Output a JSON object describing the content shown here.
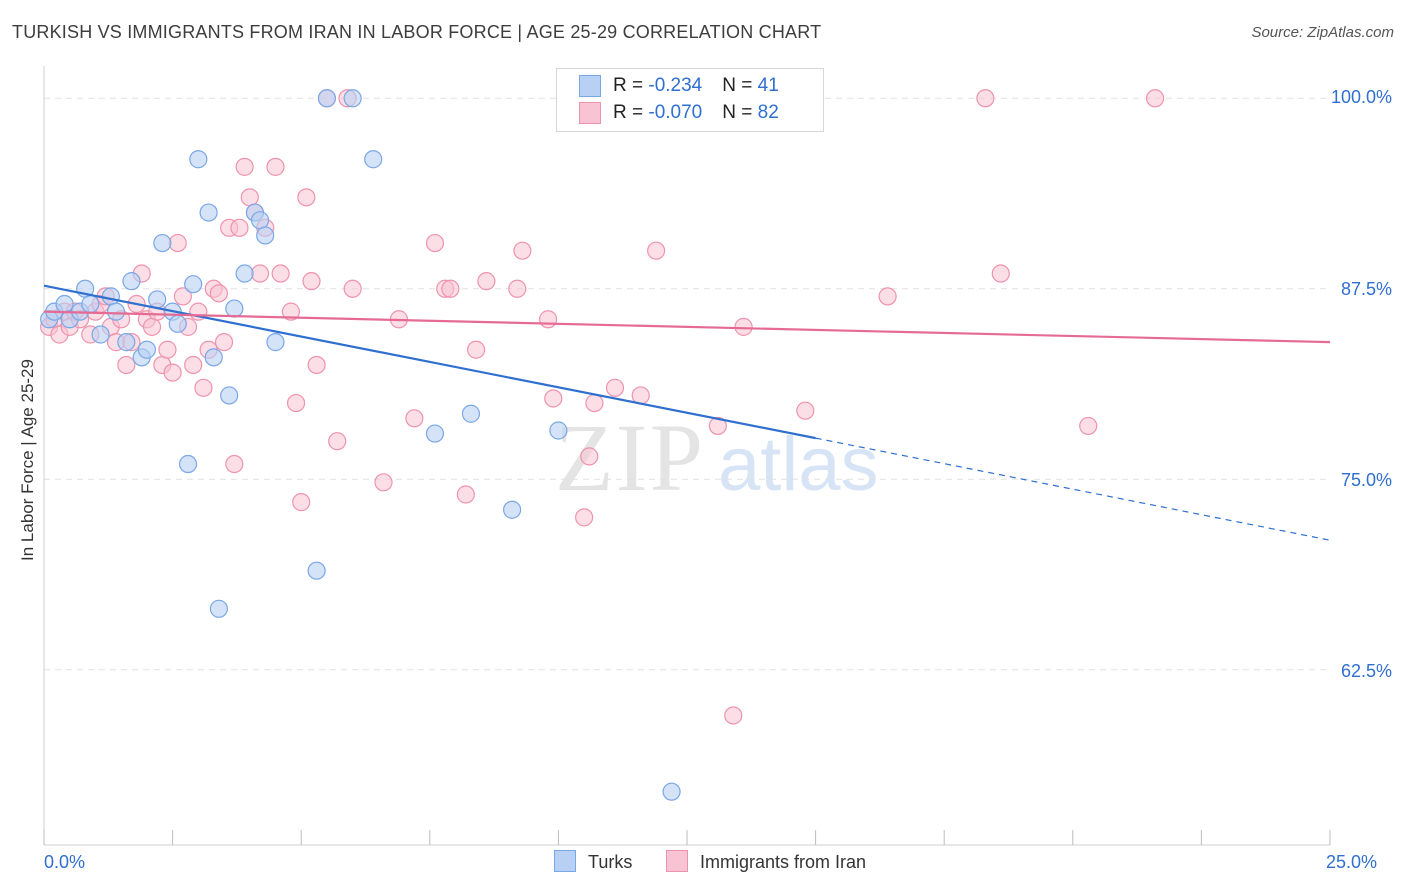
{
  "title": "TURKISH VS IMMIGRANTS FROM IRAN IN LABOR FORCE | AGE 25-29 CORRELATION CHART",
  "source": "Source: ZipAtlas.com",
  "watermark": {
    "zip": "ZIP",
    "atlas": "atlas"
  },
  "legend": {
    "turks": {
      "r_label": "R = ",
      "r_value": "-0.234",
      "n_label": "N = ",
      "n_value": "41"
    },
    "iran": {
      "r_label": "R = ",
      "r_value": "-0.070",
      "n_label": "N = ",
      "n_value": "82"
    }
  },
  "bottom_legend": {
    "turks": "Turks",
    "iran": "Immigrants from Iran"
  },
  "colors": {
    "turks_fill": "#b7d0f3",
    "turks_stroke": "#7aa7e6",
    "turks_line": "#2f6fd0",
    "iran_fill": "#f8c3d2",
    "iran_stroke": "#ee93ae",
    "iran_line": "#e56b95",
    "grid": "#e0e0e0",
    "axis_text": "#2f6fd0"
  },
  "chart_data": {
    "type": "scatter",
    "title": "TURKISH VS IMMIGRANTS FROM IRAN IN LABOR FORCE | AGE 25-29 CORRELATION CHART",
    "xlabel": "",
    "ylabel": "In Labor Force | Age 25-29",
    "xlim": [
      0.0,
      25.0
    ],
    "ylim": [
      51.0,
      101.2
    ],
    "x_tick_labels": [
      "0.0%",
      "25.0%"
    ],
    "y_ticks": [
      62.5,
      75.0,
      87.5,
      100.0
    ],
    "y_tick_labels": [
      "62.5%",
      "75.0%",
      "87.5%",
      "100.0%"
    ],
    "grid": true,
    "legend_position": "top-center",
    "series": [
      {
        "name": "Turks",
        "R": -0.234,
        "N": 41,
        "trend": {
          "x0": 0.0,
          "y0": 87.7,
          "x1": 15.0,
          "y1": 77.7,
          "dashed_to_x": 25.0,
          "dashed_to_y": 71.0
        },
        "points": [
          [
            0.1,
            85.5
          ],
          [
            0.2,
            86.0
          ],
          [
            0.4,
            86.5
          ],
          [
            0.5,
            85.5
          ],
          [
            0.7,
            86.0
          ],
          [
            0.8,
            87.5
          ],
          [
            0.9,
            86.5
          ],
          [
            1.1,
            84.5
          ],
          [
            1.3,
            87.0
          ],
          [
            1.4,
            86.0
          ],
          [
            1.6,
            84.0
          ],
          [
            1.7,
            88.0
          ],
          [
            1.9,
            83.0
          ],
          [
            2.0,
            83.5
          ],
          [
            2.2,
            86.8
          ],
          [
            2.3,
            90.5
          ],
          [
            2.5,
            86.0
          ],
          [
            2.6,
            85.2
          ],
          [
            2.8,
            76.0
          ],
          [
            2.9,
            87.8
          ],
          [
            3.0,
            96.0
          ],
          [
            3.2,
            92.5
          ],
          [
            3.3,
            83.0
          ],
          [
            3.4,
            66.5
          ],
          [
            3.6,
            80.5
          ],
          [
            3.7,
            86.2
          ],
          [
            3.9,
            88.5
          ],
          [
            4.1,
            92.5
          ],
          [
            4.2,
            92.0
          ],
          [
            4.3,
            91.0
          ],
          [
            4.5,
            84.0
          ],
          [
            5.3,
            69.0
          ],
          [
            5.5,
            100.0
          ],
          [
            6.0,
            100.0
          ],
          [
            6.4,
            96.0
          ],
          [
            7.6,
            78.0
          ],
          [
            8.3,
            79.3
          ],
          [
            9.1,
            73.0
          ],
          [
            10.0,
            78.2
          ],
          [
            12.1,
            100.0
          ],
          [
            12.2,
            54.5
          ]
        ]
      },
      {
        "name": "Immigrants from Iran",
        "R": -0.07,
        "N": 82,
        "trend": {
          "x0": 0.0,
          "y0": 86.0,
          "x1": 25.0,
          "y1": 84.0
        },
        "points": [
          [
            0.1,
            85.0
          ],
          [
            0.2,
            85.5
          ],
          [
            0.3,
            84.5
          ],
          [
            0.4,
            86.0
          ],
          [
            0.5,
            85.0
          ],
          [
            0.6,
            86.0
          ],
          [
            0.7,
            85.5
          ],
          [
            0.9,
            84.5
          ],
          [
            1.0,
            86.0
          ],
          [
            1.1,
            86.5
          ],
          [
            1.2,
            87.0
          ],
          [
            1.3,
            85.0
          ],
          [
            1.4,
            84.0
          ],
          [
            1.5,
            85.5
          ],
          [
            1.6,
            82.5
          ],
          [
            1.7,
            84.0
          ],
          [
            1.8,
            86.5
          ],
          [
            1.9,
            88.5
          ],
          [
            2.0,
            85.5
          ],
          [
            2.1,
            85.0
          ],
          [
            2.2,
            86.0
          ],
          [
            2.3,
            82.5
          ],
          [
            2.4,
            83.5
          ],
          [
            2.5,
            82.0
          ],
          [
            2.6,
            90.5
          ],
          [
            2.7,
            87.0
          ],
          [
            2.8,
            85.0
          ],
          [
            2.9,
            82.5
          ],
          [
            3.0,
            86.0
          ],
          [
            3.1,
            81.0
          ],
          [
            3.2,
            83.5
          ],
          [
            3.3,
            87.5
          ],
          [
            3.4,
            87.2
          ],
          [
            3.5,
            84.0
          ],
          [
            3.6,
            91.5
          ],
          [
            3.7,
            76.0
          ],
          [
            3.8,
            91.5
          ],
          [
            3.9,
            95.5
          ],
          [
            4.0,
            93.5
          ],
          [
            4.1,
            92.5
          ],
          [
            4.2,
            88.5
          ],
          [
            4.3,
            91.5
          ],
          [
            4.5,
            95.5
          ],
          [
            4.6,
            88.5
          ],
          [
            4.8,
            86.0
          ],
          [
            4.9,
            80.0
          ],
          [
            5.0,
            73.5
          ],
          [
            5.1,
            93.5
          ],
          [
            5.2,
            88.0
          ],
          [
            5.3,
            82.5
          ],
          [
            5.5,
            100.0
          ],
          [
            5.7,
            77.5
          ],
          [
            5.9,
            100.0
          ],
          [
            6.0,
            87.5
          ],
          [
            6.6,
            74.8
          ],
          [
            6.9,
            85.5
          ],
          [
            7.2,
            79.0
          ],
          [
            7.6,
            90.5
          ],
          [
            7.8,
            87.5
          ],
          [
            7.9,
            87.5
          ],
          [
            8.2,
            74.0
          ],
          [
            8.4,
            83.5
          ],
          [
            8.6,
            88.0
          ],
          [
            9.2,
            87.5
          ],
          [
            9.3,
            90.0
          ],
          [
            9.8,
            85.5
          ],
          [
            9.9,
            80.3
          ],
          [
            10.5,
            72.5
          ],
          [
            10.6,
            76.5
          ],
          [
            10.7,
            80.0
          ],
          [
            11.1,
            81.0
          ],
          [
            11.6,
            80.5
          ],
          [
            11.9,
            90.0
          ],
          [
            13.1,
            78.5
          ],
          [
            13.4,
            59.5
          ],
          [
            13.6,
            85.0
          ],
          [
            14.8,
            79.5
          ],
          [
            16.4,
            87.0
          ],
          [
            18.3,
            100.0
          ],
          [
            18.6,
            88.5
          ],
          [
            20.3,
            78.5
          ],
          [
            21.6,
            100.0
          ]
        ]
      }
    ]
  }
}
